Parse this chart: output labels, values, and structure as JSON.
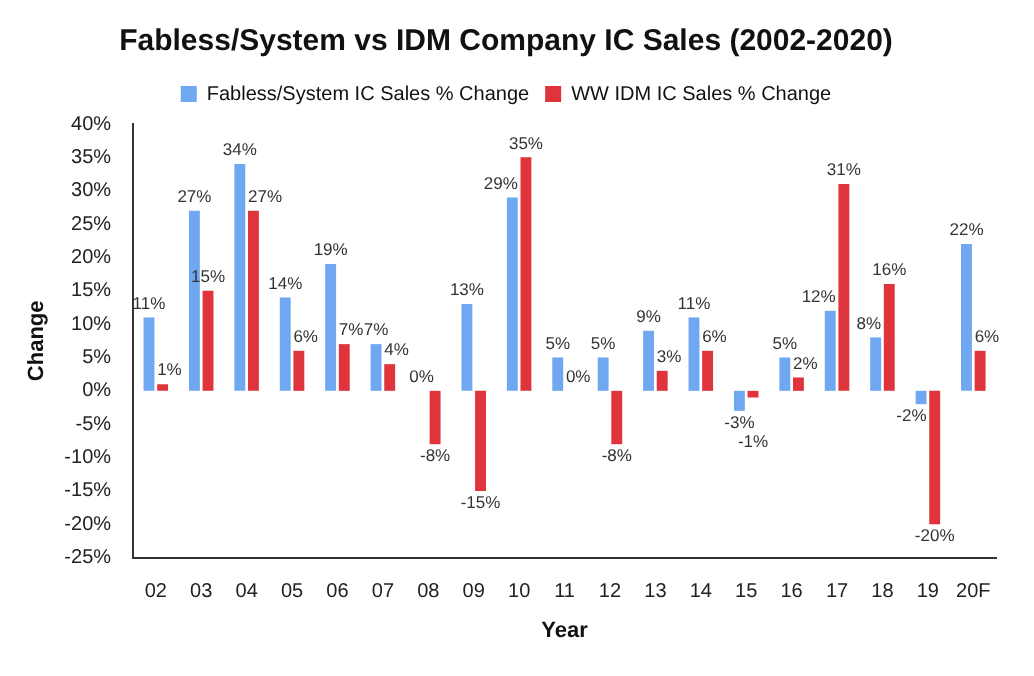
{
  "chart_data": {
    "type": "bar",
    "title": "Fabless/System vs IDM Company IC Sales (2002-2020)",
    "xlabel": "Year",
    "ylabel": "Change",
    "categories": [
      "02",
      "03",
      "04",
      "05",
      "06",
      "07",
      "08",
      "09",
      "10",
      "11",
      "12",
      "13",
      "14",
      "15",
      "16",
      "17",
      "18",
      "19",
      "20F"
    ],
    "series": [
      {
        "name": "Fabless/System IC Sales % Change",
        "color": "#6fa8f0",
        "values": [
          11,
          27,
          34,
          14,
          19,
          7,
          0,
          13,
          29,
          5,
          5,
          9,
          11,
          -3,
          5,
          12,
          8,
          -2,
          22
        ],
        "value_labels": [
          "11%",
          "27%",
          "34%",
          "14%",
          "19%",
          "7%",
          "0%",
          "13%",
          "29%",
          "5%",
          "5%",
          "9%",
          "11%",
          "-3%",
          "5%",
          "12%",
          "8%",
          "-2%",
          "22%"
        ]
      },
      {
        "name": "WW IDM IC Sales % Change",
        "color": "#e0343c",
        "values": [
          1,
          15,
          27,
          6,
          7,
          4,
          -8,
          -15,
          35,
          0,
          -8,
          3,
          6,
          -1,
          2,
          31,
          16,
          -20,
          6
        ],
        "value_labels": [
          "1%",
          "15%",
          "27%",
          "6%",
          "7%",
          "4%",
          "-8%",
          "-15%",
          "35%",
          "0%",
          "-8%",
          "3%",
          "6%",
          "-1%",
          "2%",
          "31%",
          "16%",
          "-20%",
          "6%"
        ]
      }
    ],
    "ylim": [
      -25,
      40
    ],
    "yticks": [
      {
        "value": -25,
        "label": "-25%"
      },
      {
        "value": -20,
        "label": "-20%"
      },
      {
        "value": -15,
        "label": "-15%"
      },
      {
        "value": -10,
        "label": "-10%"
      },
      {
        "value": -5,
        "label": "-5%"
      },
      {
        "value": 0,
        "label": "0%"
      },
      {
        "value": 5,
        "label": "5%"
      },
      {
        "value": 10,
        "label": "10%"
      },
      {
        "value": 15,
        "label": "15%"
      },
      {
        "value": 20,
        "label": "20%"
      },
      {
        "value": 25,
        "label": "25%"
      },
      {
        "value": 30,
        "label": "30%"
      },
      {
        "value": 35,
        "label": "35%"
      },
      {
        "value": 40,
        "label": "40%"
      }
    ],
    "grid": false,
    "legend": "top"
  }
}
